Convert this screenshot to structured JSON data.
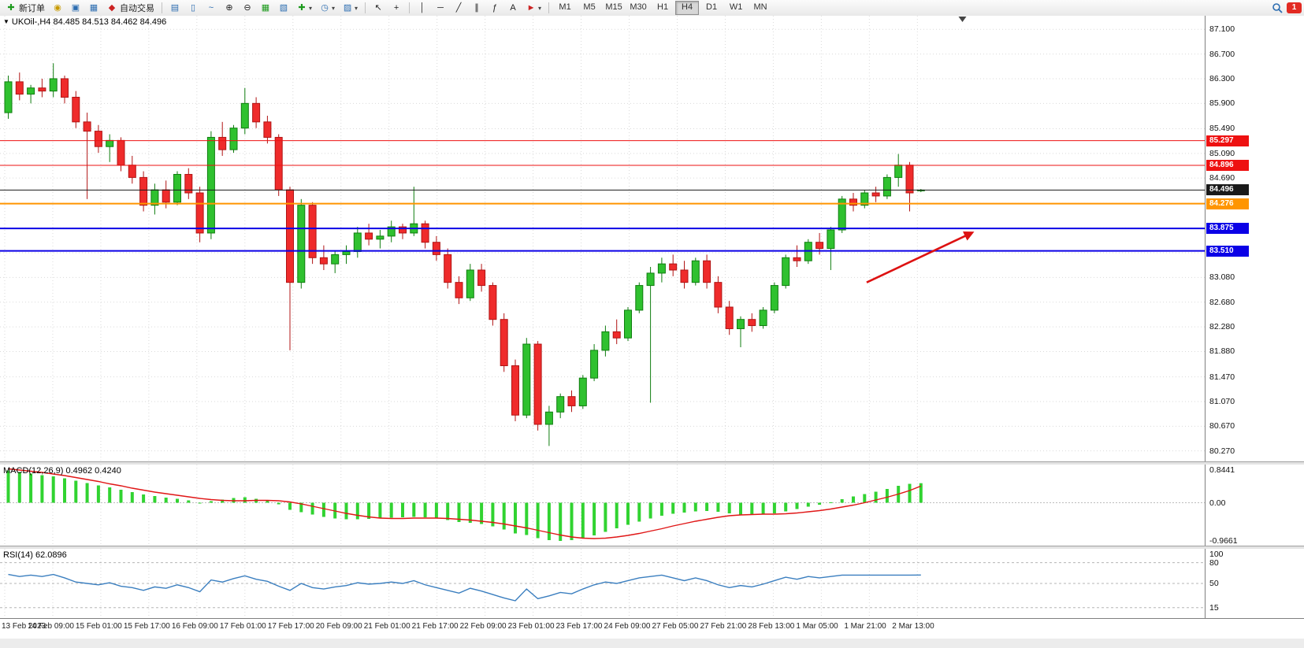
{
  "toolbar": {
    "new_order": "新订单",
    "auto_trading": "自动交易",
    "timeframes": [
      "M1",
      "M5",
      "M15",
      "M30",
      "H1",
      "H4",
      "D1",
      "W1",
      "MN"
    ],
    "active_timeframe": "H4",
    "badge": "1"
  },
  "icons": {
    "new_order": "✚",
    "account": "◉",
    "profile": "▣",
    "charts": "▦",
    "auto": "◆",
    "bar_mode": "▤",
    "candle_mode": "▯",
    "line_mode": "~",
    "zoom_in": "⊕",
    "zoom_out": "⊖",
    "tile": "▦",
    "cascade": "▧",
    "indicators": "✚",
    "periods": "◷",
    "templates": "▨",
    "cursor": "↖",
    "crosshair": "+",
    "vline": "│",
    "hline": "─",
    "trend": "╱",
    "channel": "∥",
    "fibo": "ƒ",
    "text": "A",
    "arrows": "►",
    "caret": "▾",
    "collapse": "▼"
  },
  "chart": {
    "title": "UKOil-,H4 84.485 84.513 84.462 84.496",
    "macd_label": "MACD(12,26,9) 0.4962 0.4240",
    "rsi_label": "RSI(14) 62.0896"
  },
  "chart_data": {
    "type": "candlestick",
    "symbol": "UKOil-",
    "timeframe": "H4",
    "current_ohlc": {
      "open": 84.485,
      "high": 84.513,
      "low": 84.462,
      "close": 84.496
    },
    "ylim": [
      80.1,
      87.32
    ],
    "y_ticks": [
      "87.100",
      "86.700",
      "86.300",
      "85.900",
      "85.490",
      "85.090",
      "84.690",
      "84.280",
      "83.880",
      "83.480",
      "83.080",
      "82.680",
      "82.280",
      "81.880",
      "81.470",
      "81.070",
      "80.670",
      "80.270"
    ],
    "hidden_ticks": [
      "84.280",
      "83.880",
      "83.480"
    ],
    "x_labels": [
      "13 Feb 2023",
      "14 Feb 09:00",
      "15 Feb 01:00",
      "15 Feb 17:00",
      "16 Feb 09:00",
      "17 Feb 01:00",
      "17 Feb 17:00",
      "20 Feb 09:00",
      "21 Feb 01:00",
      "21 Feb 17:00",
      "22 Feb 09:00",
      "23 Feb 01:00",
      "23 Feb 17:00",
      "24 Feb 09:00",
      "27 Feb 05:00",
      "27 Feb 21:00",
      "28 Feb 13:00",
      "1 Mar 05:00",
      "1 Mar 21:00",
      "2 Mar 13:00"
    ],
    "candles": [
      [
        85.75,
        86.35,
        85.65,
        86.25
      ],
      [
        86.25,
        86.4,
        85.95,
        86.05
      ],
      [
        86.05,
        86.2,
        85.9,
        86.15
      ],
      [
        86.15,
        86.3,
        86.0,
        86.1
      ],
      [
        86.1,
        86.55,
        86.0,
        86.3
      ],
      [
        86.3,
        86.35,
        85.9,
        86.0
      ],
      [
        86.0,
        86.1,
        85.5,
        85.6
      ],
      [
        85.6,
        85.75,
        84.35,
        85.45
      ],
      [
        85.45,
        85.55,
        85.1,
        85.2
      ],
      [
        85.2,
        85.4,
        84.95,
        85.3
      ],
      [
        85.3,
        85.35,
        84.8,
        84.9
      ],
      [
        84.9,
        85.05,
        84.6,
        84.7
      ],
      [
        84.7,
        84.8,
        84.15,
        84.25
      ],
      [
        84.25,
        84.6,
        84.1,
        84.5
      ],
      [
        84.5,
        84.65,
        84.2,
        84.3
      ],
      [
        84.3,
        84.8,
        84.25,
        84.75
      ],
      [
        84.75,
        84.85,
        84.35,
        84.45
      ],
      [
        84.45,
        84.55,
        83.65,
        83.8
      ],
      [
        83.8,
        85.45,
        83.7,
        85.35
      ],
      [
        85.35,
        85.6,
        85.05,
        85.15
      ],
      [
        85.15,
        85.55,
        85.1,
        85.5
      ],
      [
        85.5,
        86.15,
        85.4,
        85.9
      ],
      [
        85.9,
        86.0,
        85.5,
        85.6
      ],
      [
        85.6,
        85.7,
        85.25,
        85.35
      ],
      [
        85.35,
        85.4,
        84.4,
        84.5
      ],
      [
        84.5,
        84.55,
        81.9,
        83.0
      ],
      [
        83.0,
        84.35,
        82.9,
        84.25
      ],
      [
        84.25,
        84.3,
        83.3,
        83.4
      ],
      [
        83.4,
        83.6,
        83.2,
        83.3
      ],
      [
        83.3,
        83.5,
        83.15,
        83.45
      ],
      [
        83.45,
        83.6,
        83.3,
        83.5
      ],
      [
        83.5,
        83.9,
        83.4,
        83.8
      ],
      [
        83.8,
        83.95,
        83.6,
        83.7
      ],
      [
        83.7,
        83.85,
        83.55,
        83.75
      ],
      [
        83.75,
        84.0,
        83.65,
        83.9
      ],
      [
        83.9,
        83.95,
        83.7,
        83.8
      ],
      [
        83.8,
        84.55,
        83.75,
        83.95
      ],
      [
        83.95,
        84.0,
        83.55,
        83.65
      ],
      [
        83.65,
        83.75,
        83.35,
        83.45
      ],
      [
        83.45,
        83.55,
        82.9,
        83.0
      ],
      [
        83.0,
        83.1,
        82.65,
        82.75
      ],
      [
        82.75,
        83.3,
        82.7,
        83.2
      ],
      [
        83.2,
        83.3,
        82.85,
        82.95
      ],
      [
        82.95,
        83.0,
        82.3,
        82.4
      ],
      [
        82.4,
        82.5,
        81.55,
        81.65
      ],
      [
        81.65,
        81.75,
        80.75,
        80.85
      ],
      [
        80.85,
        82.1,
        80.8,
        82.0
      ],
      [
        82.0,
        82.05,
        80.6,
        80.7
      ],
      [
        80.7,
        81.0,
        80.35,
        80.9
      ],
      [
        80.9,
        81.2,
        80.8,
        81.15
      ],
      [
        81.15,
        81.25,
        80.9,
        81.0
      ],
      [
        81.0,
        81.5,
        80.95,
        81.45
      ],
      [
        81.45,
        82.0,
        81.4,
        81.9
      ],
      [
        81.9,
        82.3,
        81.8,
        82.2
      ],
      [
        82.2,
        82.4,
        82.0,
        82.1
      ],
      [
        82.1,
        82.6,
        82.05,
        82.55
      ],
      [
        82.55,
        83.0,
        82.5,
        82.95
      ],
      [
        82.95,
        83.25,
        81.05,
        83.15
      ],
      [
        83.15,
        83.4,
        83.0,
        83.3
      ],
      [
        83.3,
        83.45,
        83.1,
        83.2
      ],
      [
        83.2,
        83.35,
        82.9,
        83.0
      ],
      [
        83.0,
        83.4,
        82.95,
        83.35
      ],
      [
        83.35,
        83.45,
        82.9,
        83.0
      ],
      [
        83.0,
        83.1,
        82.5,
        82.6
      ],
      [
        82.6,
        82.7,
        82.15,
        82.25
      ],
      [
        82.25,
        82.45,
        81.95,
        82.4
      ],
      [
        82.4,
        82.5,
        82.2,
        82.3
      ],
      [
        82.3,
        82.6,
        82.25,
        82.55
      ],
      [
        82.55,
        83.0,
        82.5,
        82.95
      ],
      [
        82.95,
        83.45,
        82.9,
        83.4
      ],
      [
        83.4,
        83.6,
        83.25,
        83.35
      ],
      [
        83.35,
        83.7,
        83.3,
        83.65
      ],
      [
        83.65,
        83.8,
        83.45,
        83.55
      ],
      [
        83.55,
        83.9,
        83.2,
        83.85
      ],
      [
        83.85,
        84.4,
        83.8,
        84.35
      ],
      [
        84.35,
        84.45,
        84.15,
        84.25
      ],
      [
        84.25,
        84.5,
        84.2,
        84.45
      ],
      [
        84.45,
        84.55,
        84.3,
        84.4
      ],
      [
        84.4,
        84.75,
        84.35,
        84.7
      ],
      [
        84.7,
        85.08,
        84.55,
        84.9
      ],
      [
        84.9,
        84.95,
        84.15,
        84.45
      ],
      [
        84.485,
        84.513,
        84.462,
        84.496
      ]
    ],
    "hlines": [
      {
        "price": 85.297,
        "label": "85.297",
        "color": "#ee1111",
        "thickness": 1
      },
      {
        "price": 84.896,
        "label": "84.896",
        "color": "#ee1111",
        "thickness": 1
      },
      {
        "price": 84.496,
        "label": "84.496",
        "color": "#1a1a1a",
        "thickness": 1
      },
      {
        "price": 84.276,
        "label": "84.276",
        "color": "#ff9500",
        "thickness": 2
      },
      {
        "price": 83.875,
        "label": "83.875",
        "color": "#0b00e6",
        "thickness": 2
      },
      {
        "price": 83.51,
        "label": "83.510",
        "color": "#0b00e6",
        "thickness": 2
      }
    ],
    "arrow": {
      "from_index": 76.5,
      "from_price": 83.0,
      "to_index": 85.8,
      "to_price": 83.8,
      "color": "#dd1111"
    },
    "shift_marker_index": 85,
    "macd": {
      "label": "MACD(12,26,9)",
      "values": "0.4962 0.4240",
      "scale_labels": [
        "0.8441",
        "0.00",
        "-0.9661"
      ],
      "plot_max": 0.97,
      "plot_min": -1.09,
      "hist_color": "#31d331",
      "signal_color": "#e01616",
      "hist": [
        0.82,
        0.78,
        0.74,
        0.7,
        0.67,
        0.62,
        0.56,
        0.5,
        0.44,
        0.39,
        0.33,
        0.27,
        0.21,
        0.17,
        0.13,
        0.1,
        0.06,
        0.0,
        0.04,
        0.08,
        0.12,
        0.14,
        0.1,
        0.05,
        -0.04,
        -0.18,
        -0.24,
        -0.3,
        -0.36,
        -0.4,
        -0.42,
        -0.42,
        -0.41,
        -0.4,
        -0.38,
        -0.37,
        -0.36,
        -0.37,
        -0.4,
        -0.44,
        -0.49,
        -0.51,
        -0.54,
        -0.6,
        -0.68,
        -0.78,
        -0.82,
        -0.9,
        -0.95,
        -0.97,
        -0.95,
        -0.9,
        -0.83,
        -0.74,
        -0.65,
        -0.56,
        -0.48,
        -0.4,
        -0.33,
        -0.28,
        -0.25,
        -0.22,
        -0.21,
        -0.23,
        -0.27,
        -0.3,
        -0.31,
        -0.3,
        -0.27,
        -0.22,
        -0.16,
        -0.1,
        -0.05,
        0.01,
        0.09,
        0.16,
        0.22,
        0.28,
        0.35,
        0.43,
        0.48,
        0.4962
      ],
      "signal": [
        0.86,
        0.83,
        0.8,
        0.77,
        0.73,
        0.69,
        0.64,
        0.59,
        0.54,
        0.48,
        0.43,
        0.37,
        0.32,
        0.27,
        0.23,
        0.19,
        0.15,
        0.11,
        0.08,
        0.06,
        0.05,
        0.05,
        0.06,
        0.06,
        0.05,
        0.02,
        -0.03,
        -0.09,
        -0.15,
        -0.21,
        -0.27,
        -0.32,
        -0.36,
        -0.39,
        -0.4,
        -0.4,
        -0.39,
        -0.39,
        -0.39,
        -0.4,
        -0.42,
        -0.44,
        -0.47,
        -0.5,
        -0.54,
        -0.59,
        -0.64,
        -0.7,
        -0.76,
        -0.82,
        -0.87,
        -0.9,
        -0.91,
        -0.9,
        -0.87,
        -0.83,
        -0.78,
        -0.72,
        -0.66,
        -0.59,
        -0.53,
        -0.47,
        -0.42,
        -0.37,
        -0.33,
        -0.31,
        -0.3,
        -0.29,
        -0.29,
        -0.28,
        -0.26,
        -0.23,
        -0.2,
        -0.16,
        -0.11,
        -0.06,
        0.0,
        0.07,
        0.14,
        0.22,
        0.31,
        0.424
      ]
    },
    "rsi": {
      "label": "RSI(14)",
      "value": "62.0896",
      "scale_labels": [
        "100",
        "80",
        "50",
        "15"
      ],
      "levels": [
        80,
        50,
        15
      ],
      "line_color": "#3a7ebf",
      "values": [
        63,
        60,
        62,
        60,
        63,
        58,
        52,
        50,
        48,
        51,
        46,
        44,
        40,
        45,
        43,
        48,
        44,
        38,
        55,
        52,
        57,
        61,
        56,
        53,
        46,
        40,
        50,
        44,
        42,
        45,
        47,
        51,
        49,
        50,
        52,
        50,
        54,
        48,
        44,
        40,
        36,
        43,
        39,
        34,
        29,
        25,
        42,
        28,
        32,
        37,
        35,
        42,
        48,
        52,
        50,
        54,
        58,
        60,
        62,
        58,
        54,
        58,
        54,
        48,
        44,
        47,
        45,
        49,
        54,
        59,
        56,
        60,
        58,
        60,
        62,
        62,
        62,
        62,
        62,
        62,
        62,
        62.09
      ]
    }
  }
}
